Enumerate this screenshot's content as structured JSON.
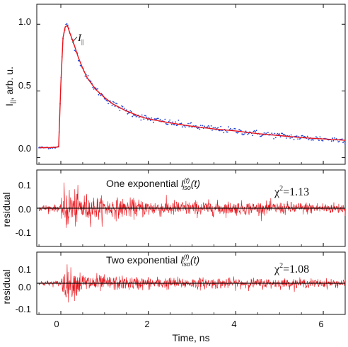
{
  "chart_data": [
    {
      "type": "scatter",
      "panel": "decay",
      "ylabel_main": "I",
      "ylabel_sub": "||",
      "ylabel_rest": ", arb. u.",
      "annotation_main": "I",
      "annotation_sub": "||",
      "xlim": [
        -0.55,
        6.5
      ],
      "ylim": [
        -0.05,
        1.15
      ],
      "x_ticks": [
        0,
        2,
        4,
        6
      ],
      "y_ticks": [
        0.0,
        0.5,
        1.0
      ],
      "y_tick_labels": [
        "0.0",
        "0.5",
        "1.0"
      ],
      "colors": {
        "data": "#1f3fd8",
        "fit": "#e8141b"
      },
      "series": [
        {
          "name": "I||",
          "x": [
            -0.5,
            -0.25,
            -0.05,
            0.0,
            0.05,
            0.1,
            0.15,
            0.2,
            0.3,
            0.4,
            0.5,
            0.6,
            0.8,
            1.0,
            1.2,
            1.5,
            1.8,
            2.0,
            2.5,
            3.0,
            3.5,
            4.0,
            4.5,
            5.0,
            5.5,
            6.0,
            6.5
          ],
          "y": [
            0.075,
            0.075,
            0.08,
            0.55,
            0.9,
            0.98,
            0.99,
            0.94,
            0.85,
            0.75,
            0.67,
            0.6,
            0.51,
            0.45,
            0.4,
            0.35,
            0.31,
            0.29,
            0.26,
            0.235,
            0.215,
            0.2,
            0.18,
            0.165,
            0.15,
            0.14,
            0.13
          ]
        }
      ]
    },
    {
      "type": "line",
      "panel": "residual-one",
      "title_text": "One exponential ",
      "title_symbol": "I",
      "title_sub": "iso",
      "title_sup": "(f)",
      "title_args": "(t)",
      "chi_label": "χ",
      "chi_sup": "2",
      "chi_value": "=1.13",
      "ylabel": "residual",
      "xlim": [
        -0.55,
        6.5
      ],
      "ylim": [
        -0.1,
        0.1
      ],
      "y_ticks": [
        -0.1,
        0.0,
        0.1
      ],
      "y_tick_labels": [
        "-0.1",
        "0.0",
        "0.1"
      ],
      "noise_envelope": {
        "x": [
          -0.5,
          0.0,
          0.05,
          0.5,
          1.0,
          2.0,
          4.0,
          6.5
        ],
        "amplitude": [
          0.008,
          0.008,
          0.055,
          0.035,
          0.025,
          0.02,
          0.016,
          0.013
        ]
      },
      "colors": {
        "residual": "#e8141b",
        "zero": "#111111"
      }
    },
    {
      "type": "line",
      "panel": "residual-two",
      "title_text": "Two exponential ",
      "title_symbol": "I",
      "title_sub": "iso",
      "title_sup": "(f)",
      "title_args": "(t)",
      "chi_label": "χ",
      "chi_sup": "2",
      "chi_value": "=1.08",
      "ylabel": "residual",
      "xlabel": "Time, ns",
      "xlim": [
        -0.55,
        6.5
      ],
      "ylim": [
        -0.1,
        0.1
      ],
      "x_ticks": [
        0,
        2,
        4,
        6
      ],
      "y_ticks": [
        -0.1,
        0.0,
        0.1
      ],
      "y_tick_labels": [
        "-0.1",
        "0.0",
        "0.1"
      ],
      "noise_envelope": {
        "x": [
          -0.5,
          0.0,
          0.05,
          0.5,
          1.0,
          2.0,
          4.0,
          6.5
        ],
        "amplitude": [
          0.008,
          0.008,
          0.05,
          0.032,
          0.022,
          0.018,
          0.015,
          0.012
        ]
      },
      "colors": {
        "residual": "#e8141b",
        "zero": "#111111"
      }
    }
  ]
}
